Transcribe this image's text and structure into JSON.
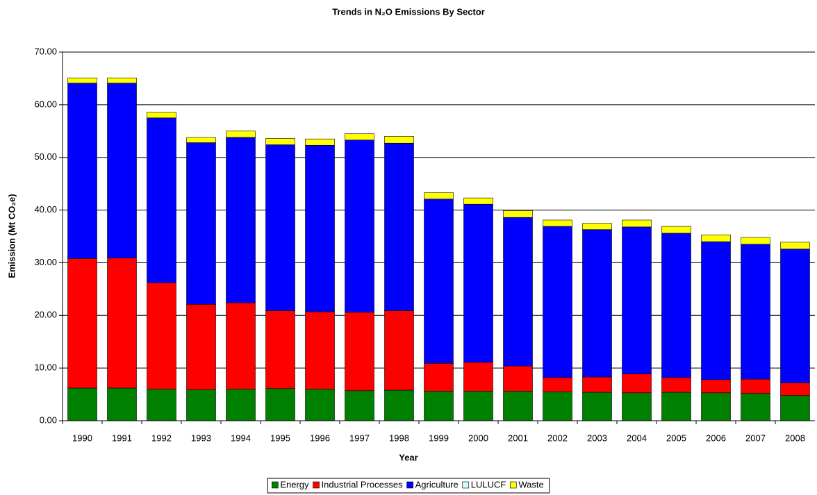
{
  "chart_data": {
    "type": "stacked_bar",
    "title": "Trends in N₂O Emissions By Sector",
    "x_label": "Year",
    "y_label": "Emission (Mt CO₂e)",
    "categories": [
      "1990",
      "1991",
      "1992",
      "1993",
      "1994",
      "1995",
      "1996",
      "1997",
      "1998",
      "1999",
      "2000",
      "2001",
      "2002",
      "2003",
      "2004",
      "2005",
      "2006",
      "2007",
      "2008"
    ],
    "series": [
      {
        "name": "Energy",
        "color": "#008000",
        "values": [
          6.2,
          6.2,
          6.0,
          5.9,
          6.0,
          6.1,
          6.0,
          5.7,
          5.8,
          5.6,
          5.6,
          5.6,
          5.5,
          5.4,
          5.3,
          5.4,
          5.3,
          5.2,
          4.8
        ]
      },
      {
        "name": "Industrial Processes",
        "color": "#ff0000",
        "values": [
          24.6,
          24.7,
          20.2,
          16.2,
          16.4,
          14.8,
          14.7,
          14.9,
          15.1,
          5.3,
          5.5,
          4.8,
          2.7,
          2.9,
          3.6,
          2.8,
          2.5,
          2.7,
          2.4
        ]
      },
      {
        "name": "Agriculture",
        "color": "#0000ff",
        "values": [
          33.3,
          33.2,
          31.3,
          30.7,
          31.4,
          31.5,
          31.6,
          32.7,
          31.8,
          31.2,
          30.0,
          28.2,
          28.7,
          28.0,
          27.9,
          27.4,
          26.2,
          25.6,
          25.4
        ]
      },
      {
        "name": "LULUCF",
        "color": "#ccffff",
        "values": [
          0,
          0,
          0,
          0,
          0,
          0,
          0,
          0,
          0,
          0,
          0,
          0,
          0,
          0,
          0,
          0,
          0,
          0,
          0
        ]
      },
      {
        "name": "Waste",
        "color": "#ffff00",
        "values": [
          1.0,
          1.0,
          1.1,
          1.0,
          1.2,
          1.2,
          1.2,
          1.2,
          1.3,
          1.2,
          1.2,
          1.3,
          1.2,
          1.2,
          1.3,
          1.3,
          1.3,
          1.3,
          1.3
        ]
      }
    ],
    "ylim": [
      0,
      70
    ],
    "yticks": [
      {
        "value": 0,
        "label": "0.00"
      },
      {
        "value": 10,
        "label": "10.00"
      },
      {
        "value": 20,
        "label": "20.00"
      },
      {
        "value": 30,
        "label": "30.00"
      },
      {
        "value": 40,
        "label": "40.00"
      },
      {
        "value": 50,
        "label": "50.00"
      },
      {
        "value": 60,
        "label": "60.00"
      },
      {
        "value": 70,
        "label": "70.00"
      }
    ],
    "grid": true,
    "legend": "bottom"
  }
}
